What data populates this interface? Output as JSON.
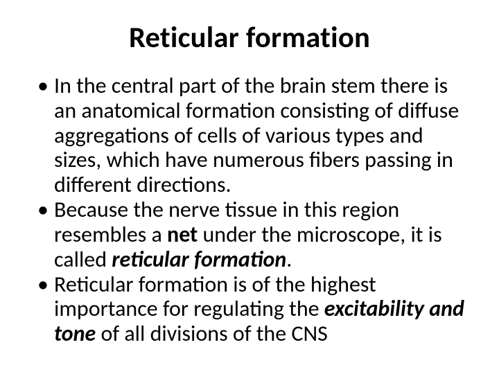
{
  "slide": {
    "background_color": "#ffffff",
    "text_color": "#000000",
    "font_family": "Calibri",
    "title": {
      "text": "Reticular formation",
      "fontsize_pt": 32,
      "weight": 700,
      "align": "center"
    },
    "body": {
      "fontsize_pt": 24,
      "line_height": 1.12,
      "bullet_glyph": "•",
      "items": [
        {
          "runs": [
            {
              "t": "In the central part of the brain stem there is an anatomical formation consisting of diffuse aggregations of cells of various types and sizes, which have numerous fibers passing in different directions."
            }
          ]
        },
        {
          "runs": [
            {
              "t": " Because the nerve tissue in this region resembles a "
            },
            {
              "t": "net",
              "bold": true
            },
            {
              "t": " under the microscope, it is called "
            },
            {
              "t": "reticular formation",
              "bold": true,
              "italic": true
            },
            {
              "t": "."
            }
          ]
        },
        {
          "runs": [
            {
              "t": "Reticular formation is of the highest importance for regulating the "
            },
            {
              "t": "excitability and tone",
              "bold": true,
              "italic": true
            },
            {
              "t": " of all divisions of the CNS"
            }
          ]
        }
      ]
    }
  }
}
